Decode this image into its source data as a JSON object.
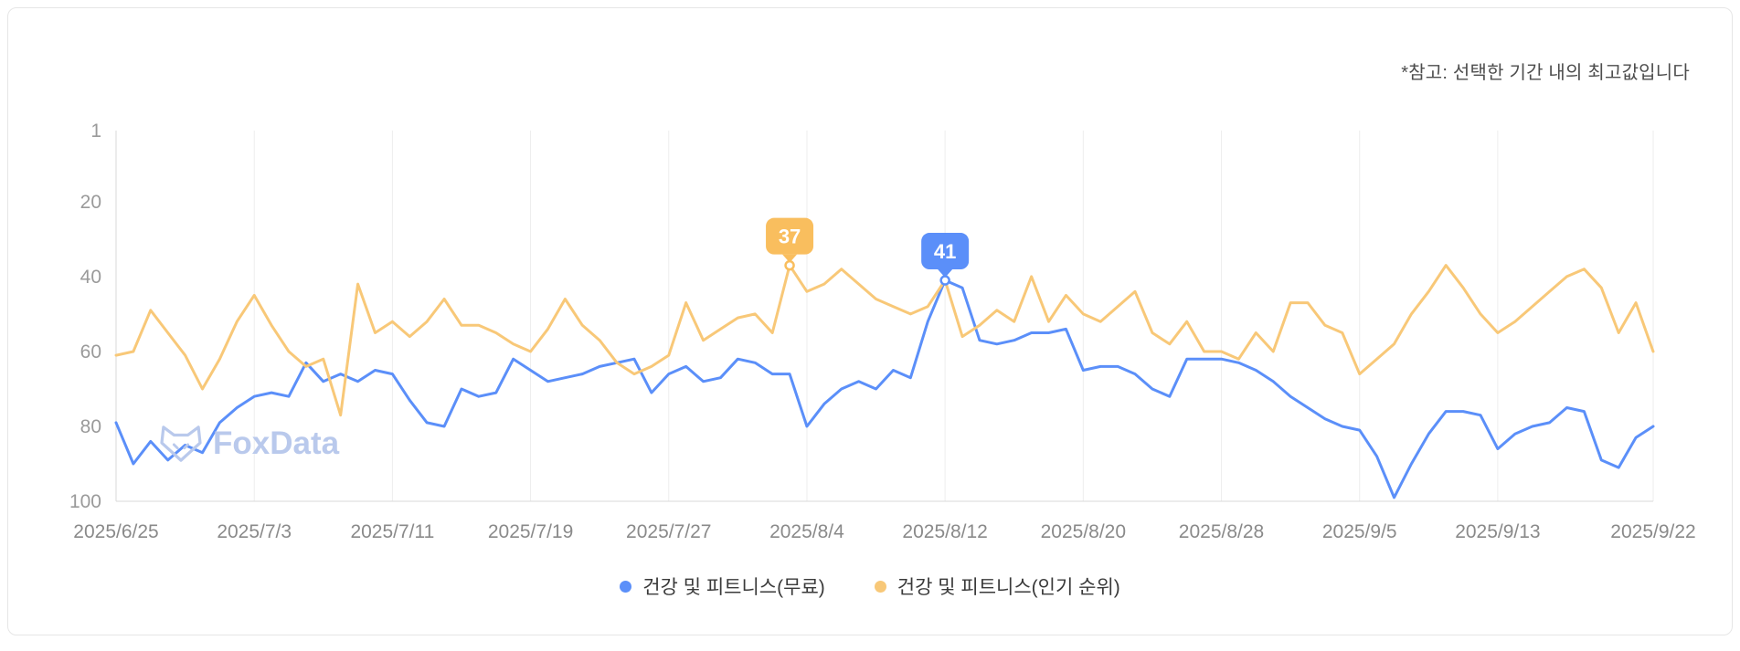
{
  "note": "*참고: 선택한 기간 내의 최고값입니다",
  "watermark": {
    "text": "FoxData"
  },
  "legend": [
    {
      "label": "건강 및 피트니스(무료)",
      "color": "#5B8FF9"
    },
    {
      "label": "건강 및 피트니스(인기 순위)",
      "color": "#F8C878"
    }
  ],
  "colors": {
    "blue": "#5B8FF9",
    "orange": "#F8C878",
    "orange_badge": "#F9BE5E",
    "grid": "#ededed",
    "axis": "#d9d9d9"
  },
  "chart_data": {
    "type": "line",
    "title": "",
    "xlabel": "",
    "ylabel": "",
    "y_axis": {
      "ticks": [
        1,
        20,
        40,
        60,
        80,
        100
      ],
      "range": [
        1,
        100
      ],
      "inverted": true
    },
    "grid": "vertical-only",
    "legend_position": "bottom-center",
    "x_tick_labels": [
      "2025/6/25",
      "2025/7/3",
      "2025/7/11",
      "2025/7/19",
      "2025/7/27",
      "2025/8/4",
      "2025/8/12",
      "2025/8/20",
      "2025/8/28",
      "2025/9/5",
      "2025/9/13",
      "2025/9/22"
    ],
    "x_tick_day_indices": [
      0,
      8,
      16,
      24,
      32,
      40,
      48,
      56,
      64,
      72,
      80,
      89
    ],
    "series": [
      {
        "name": "건강 및 피트니스(무료)",
        "color": "#5B8FF9",
        "values": [
          79,
          90,
          84,
          89,
          85,
          87,
          79,
          75,
          72,
          71,
          72,
          63,
          68,
          66,
          68,
          65,
          66,
          73,
          79,
          80,
          70,
          72,
          71,
          62,
          65,
          68,
          67,
          66,
          64,
          63,
          62,
          71,
          66,
          64,
          68,
          67,
          62,
          63,
          66,
          66,
          80,
          74,
          70,
          68,
          70,
          65,
          67,
          52,
          41,
          43,
          57,
          58,
          57,
          55,
          55,
          54,
          65,
          64,
          64,
          66,
          70,
          72,
          62,
          62,
          62,
          63,
          65,
          68,
          72,
          75,
          78,
          80,
          81,
          88,
          99,
          90,
          82,
          76,
          76,
          77,
          86,
          82,
          80,
          79,
          75,
          76,
          89,
          91,
          83,
          80
        ]
      },
      {
        "name": "건강 및 피트니스(인기 순위)",
        "color": "#F8C878",
        "values": [
          61,
          60,
          49,
          55,
          61,
          70,
          62,
          52,
          45,
          53,
          60,
          64,
          62,
          77,
          42,
          55,
          52,
          56,
          52,
          46,
          53,
          53,
          55,
          58,
          60,
          54,
          46,
          53,
          57,
          63,
          66,
          64,
          61,
          47,
          57,
          54,
          51,
          50,
          55,
          37,
          44,
          42,
          38,
          42,
          46,
          48,
          50,
          48,
          41,
          56,
          53,
          49,
          52,
          40,
          52,
          45,
          50,
          52,
          48,
          44,
          55,
          58,
          52,
          60,
          60,
          62,
          55,
          60,
          47,
          47,
          53,
          55,
          66,
          62,
          58,
          50,
          44,
          37,
          43,
          50,
          55,
          52,
          48,
          44,
          40,
          38,
          43,
          55,
          47,
          60
        ]
      }
    ],
    "annotations": [
      {
        "series": 1,
        "series_name": "건강 및 피트니스(인기 순위)",
        "day_index": 39,
        "value": 37,
        "label": "37",
        "badge_color": "#F9BE5E"
      },
      {
        "series": 0,
        "series_name": "건강 및 피트니스(무료)",
        "day_index": 48,
        "value": 41,
        "label": "41",
        "badge_color": "#5B8FF9"
      }
    ]
  }
}
